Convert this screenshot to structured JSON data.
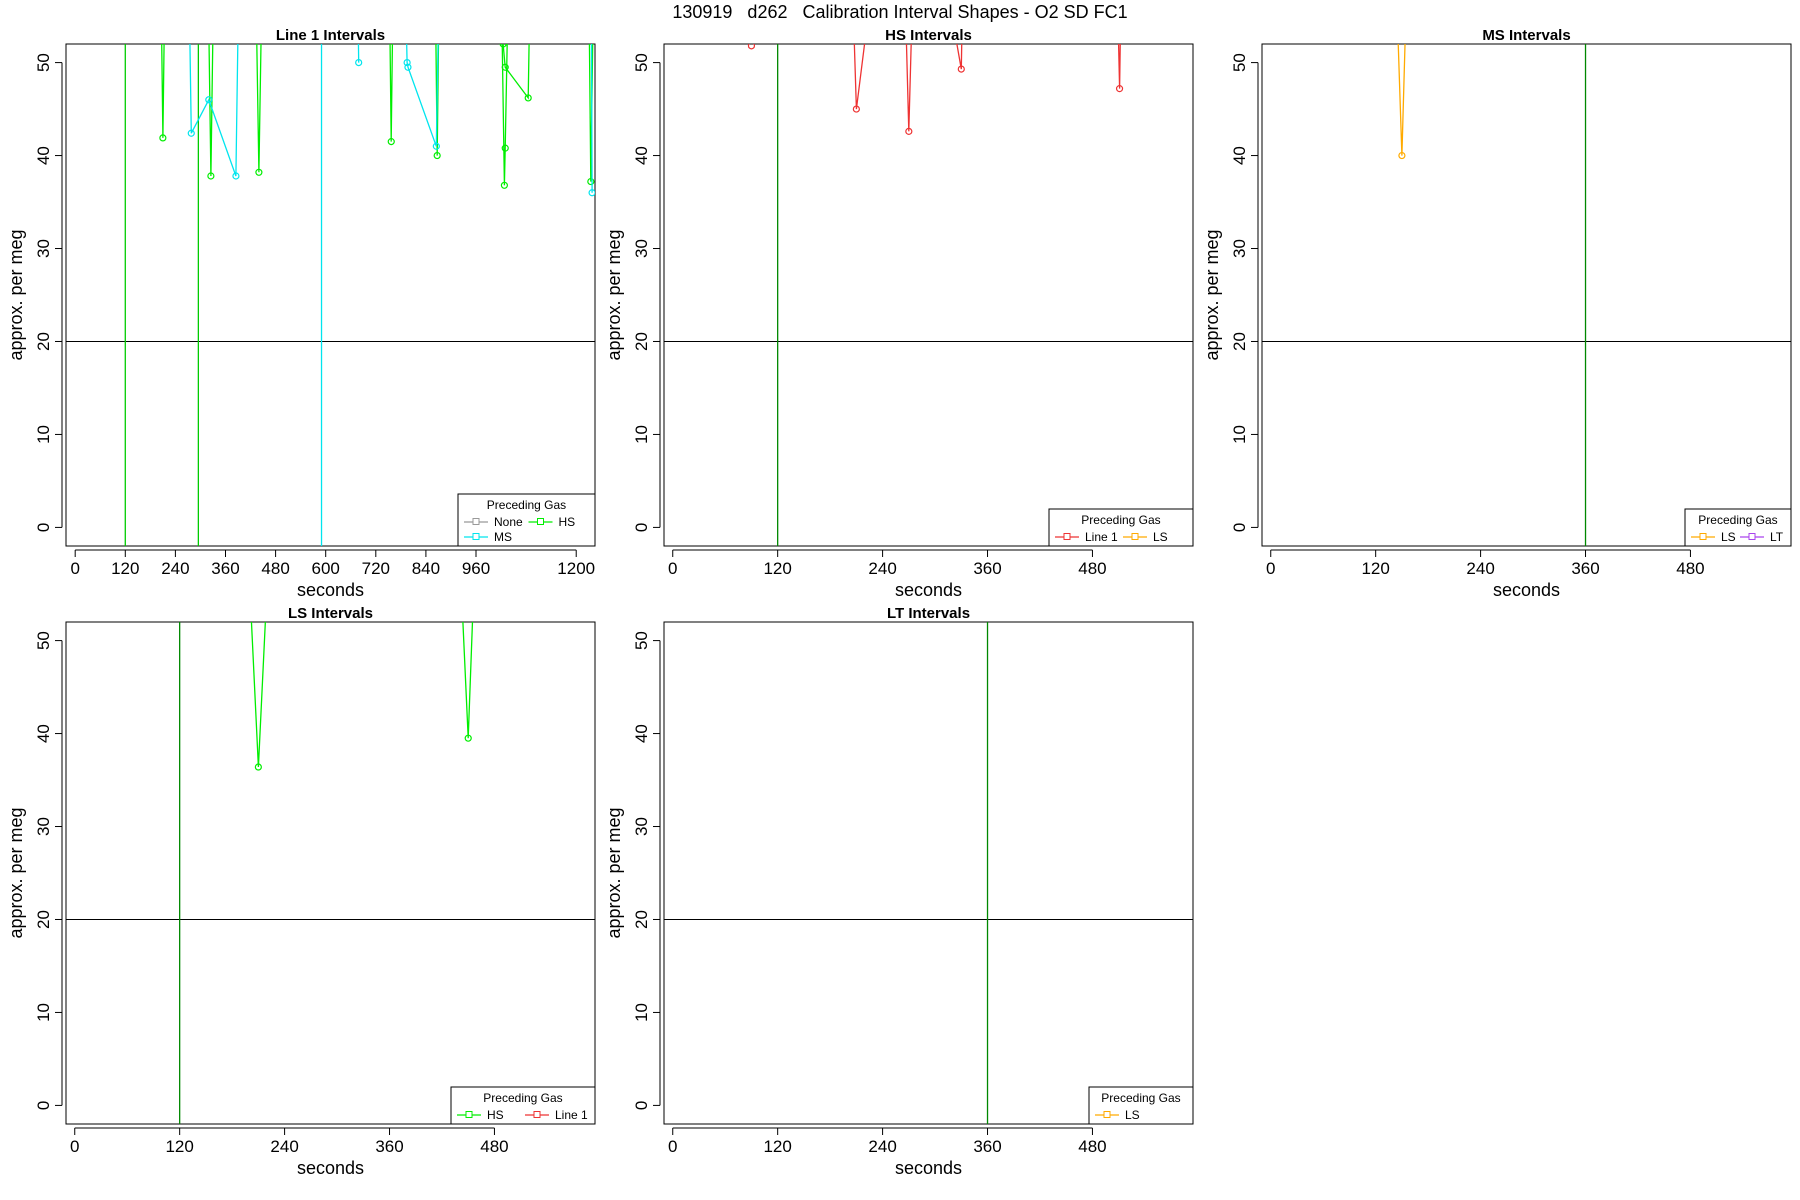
{
  "title": "130919   d262   Calibration Interval Shapes - O2 SD FC1",
  "chart_data": [
    {
      "type": "line",
      "title": "Line 1 Intervals",
      "xlabel": "seconds",
      "ylabel": "approx. per meg",
      "xlim": [
        -22,
        1245
      ],
      "ylim": [
        -2,
        52
      ],
      "xticks": [
        0,
        120,
        240,
        360,
        480,
        600,
        720,
        840,
        960,
        1200
      ],
      "yticks": [
        0,
        10,
        20,
        30,
        40,
        50
      ],
      "hline": 20,
      "vlines": [
        {
          "x": 120,
          "color": "#00cc00"
        },
        {
          "x": 295,
          "color": "#00cc00"
        },
        {
          "x": 590,
          "color": "#00e5ee"
        }
      ],
      "legend": {
        "title": "Preceding Gas",
        "position": "bottom-right",
        "entries": [
          {
            "label": "None",
            "color": "#999999"
          },
          {
            "label": "HS",
            "color": "#00ee00"
          },
          {
            "label": "MS",
            "color": "#00e5ee"
          }
        ]
      },
      "series": [
        {
          "color": "#00ee00",
          "points": [
            [
              205,
              60
            ],
            [
              210,
              41.9
            ],
            [
              215,
              60
            ]
          ]
        },
        {
          "color": "#00ee00",
          "points": [
            [
              318,
              60
            ],
            [
              325,
              37.8
            ],
            [
              332,
              60
            ]
          ]
        },
        {
          "color": "#00ee00",
          "points": [
            [
              432,
              60
            ],
            [
              440,
              38.2
            ],
            [
              448,
              60
            ]
          ]
        },
        {
          "color": "#00ee00",
          "points": [
            [
              752,
              60
            ],
            [
              757,
              41.5
            ],
            [
              762,
              60
            ]
          ]
        },
        {
          "color": "#00ee00",
          "points": [
            [
              862,
              60
            ],
            [
              867,
              40
            ],
            [
              872,
              60
            ]
          ]
        },
        {
          "color": "#00ee00",
          "points": [
            [
              1020,
              60
            ],
            [
              1028,
              36.8
            ],
            [
              1030,
              40.8
            ],
            [
              1038,
              60
            ]
          ]
        },
        {
          "color": "#00ee00",
          "points": [
            [
              1025,
              52
            ],
            [
              1030,
              49.5
            ],
            [
              1085,
              46.2
            ],
            [
              1090,
              60
            ]
          ]
        },
        {
          "color": "#00ee00",
          "points": [
            [
              1230,
              60
            ],
            [
              1235,
              37.2
            ],
            [
              1242,
              60
            ]
          ]
        },
        {
          "color": "#00e5ee",
          "points": [
            [
              272,
              60
            ],
            [
              278,
              42.4
            ],
            [
              320,
              46
            ],
            [
              385,
              37.8
            ],
            [
              392,
              60
            ]
          ]
        },
        {
          "color": "#00e5ee",
          "points": [
            [
              676,
              60
            ],
            [
              679,
              50
            ]
          ]
        },
        {
          "color": "#00e5ee",
          "points": [
            [
              790,
              60
            ],
            [
              795,
              50
            ],
            [
              797,
              49.5
            ],
            [
              865,
              41
            ],
            [
              872,
              60
            ]
          ]
        },
        {
          "color": "#00e5ee",
          "points": [
            [
              1236,
              60
            ],
            [
              1238,
              36
            ]
          ]
        }
      ]
    },
    {
      "type": "line",
      "title": "HS Intervals",
      "xlabel": "seconds",
      "ylabel": "approx. per meg",
      "xlim": [
        -10,
        595
      ],
      "ylim": [
        -2,
        52
      ],
      "xticks": [
        0,
        120,
        240,
        360,
        480
      ],
      "yticks": [
        0,
        10,
        20,
        30,
        40,
        50
      ],
      "hline": 20,
      "vlines": [
        {
          "x": 120,
          "color": "#008800"
        }
      ],
      "legend": {
        "title": "Preceding Gas",
        "position": "bottom-right",
        "entries": [
          {
            "label": "Line 1",
            "color": "#ee3333"
          },
          {
            "label": "LS",
            "color": "#ffaa00"
          }
        ]
      },
      "series": [
        {
          "color": "#ee3333",
          "points": [
            [
              90,
              51.8
            ]
          ]
        },
        {
          "color": "#ee3333",
          "points": [
            [
              205,
              60
            ],
            [
              210,
              45
            ],
            [
              230,
              60
            ]
          ]
        },
        {
          "color": "#ee3333",
          "points": [
            [
              265,
              60
            ],
            [
              270,
              42.6
            ],
            [
              275,
              60
            ]
          ]
        },
        {
          "color": "#ee3333",
          "points": [
            [
              310,
              60
            ],
            [
              330,
              49.3
            ],
            [
              332,
              60
            ]
          ]
        },
        {
          "color": "#ee3333",
          "points": [
            [
              508,
              60
            ],
            [
              511,
              47.2
            ],
            [
              513,
              60
            ]
          ]
        }
      ]
    },
    {
      "type": "line",
      "title": "MS Intervals",
      "xlabel": "seconds",
      "ylabel": "approx. per meg",
      "xlim": [
        -10,
        595
      ],
      "ylim": [
        -2,
        52
      ],
      "xticks": [
        0,
        120,
        240,
        360,
        480
      ],
      "yticks": [
        0,
        10,
        20,
        30,
        40,
        50
      ],
      "hline": 20,
      "vlines": [
        {
          "x": 360,
          "color": "#008800"
        }
      ],
      "legend": {
        "title": "Preceding Gas",
        "position": "bottom-right",
        "entries": [
          {
            "label": "LS",
            "color": "#ffaa00"
          },
          {
            "label": "LT",
            "color": "#aa44ee"
          }
        ]
      },
      "series": [
        {
          "color": "#ffaa00",
          "points": [
            [
              143,
              60
            ],
            [
              150,
              40
            ],
            [
              156,
              60
            ]
          ]
        }
      ]
    },
    {
      "type": "line",
      "title": "LS Intervals",
      "xlabel": "seconds",
      "ylabel": "approx. per meg",
      "xlim": [
        -10,
        595
      ],
      "ylim": [
        -2,
        52
      ],
      "xticks": [
        0,
        120,
        240,
        360,
        480
      ],
      "yticks": [
        0,
        10,
        20,
        30,
        40,
        50
      ],
      "hline": 20,
      "vlines": [
        {
          "x": 120,
          "color": "#008800"
        }
      ],
      "legend": {
        "title": "Preceding Gas",
        "position": "bottom-right",
        "entries": [
          {
            "label": "HS",
            "color": "#00ee00"
          },
          {
            "label": "Line 1",
            "color": "#ee3333"
          }
        ]
      },
      "series": [
        {
          "color": "#00ee00",
          "points": [
            [
              198,
              60
            ],
            [
              210,
              36.4
            ],
            [
              222,
              60
            ]
          ]
        },
        {
          "color": "#00ee00",
          "points": [
            [
              440,
              60
            ],
            [
              450,
              39.5
            ],
            [
              458,
              60
            ]
          ]
        }
      ]
    },
    {
      "type": "line",
      "title": "LT Intervals",
      "xlabel": "seconds",
      "ylabel": "approx. per meg",
      "xlim": [
        -10,
        595
      ],
      "ylim": [
        -2,
        52
      ],
      "xticks": [
        0,
        120,
        240,
        360,
        480
      ],
      "yticks": [
        0,
        10,
        20,
        30,
        40,
        50
      ],
      "hline": 20,
      "vlines": [
        {
          "x": 360,
          "color": "#008800"
        }
      ],
      "legend": {
        "title": "Preceding Gas",
        "position": "bottom-right",
        "entries": [
          {
            "label": "LS",
            "color": "#ffaa00"
          }
        ]
      },
      "series": []
    }
  ]
}
